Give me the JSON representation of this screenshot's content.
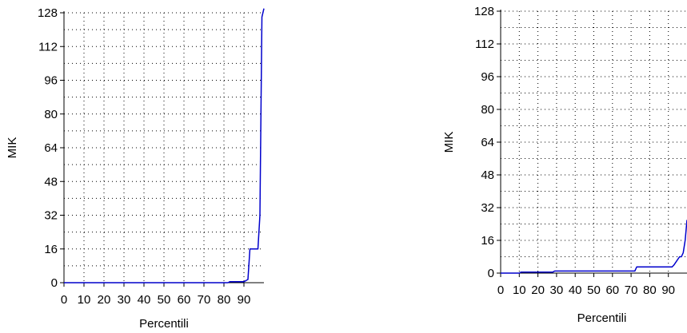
{
  "chart_data": [
    {
      "type": "line",
      "xlabel": "Percentili",
      "ylabel": "MIK",
      "xlim": [
        0,
        100
      ],
      "ylim": [
        0,
        128
      ],
      "x_ticks": [
        0,
        10,
        20,
        30,
        40,
        50,
        60,
        70,
        80,
        90
      ],
      "x_tick_labels": [
        "0",
        "10",
        "20",
        "30",
        "40",
        "50",
        "60",
        "70",
        "80",
        "90"
      ],
      "y_ticks": [
        0,
        16,
        32,
        48,
        64,
        80,
        96,
        112,
        128
      ],
      "y_tick_labels": [
        "0",
        "16",
        "32",
        "48",
        "64",
        "80",
        "96",
        "112",
        "128"
      ],
      "grid": true,
      "series_color": "#0000cc",
      "series": [
        {
          "x": [
            0,
            82,
            83,
            90,
            91,
            92,
            93,
            94,
            97,
            98,
            99,
            100
          ],
          "y": [
            0,
            0,
            0.5,
            0.5,
            1,
            1.5,
            16,
            16,
            16,
            32,
            126,
            130
          ]
        }
      ]
    },
    {
      "type": "line",
      "xlabel": "Percentili",
      "ylabel": "MIK",
      "xlim": [
        0,
        100
      ],
      "ylim": [
        0,
        128
      ],
      "x_ticks": [
        0,
        10,
        20,
        30,
        40,
        50,
        60,
        70,
        80,
        90
      ],
      "x_tick_labels": [
        "0",
        "10",
        "20",
        "30",
        "40",
        "50",
        "60",
        "70",
        "80",
        "90"
      ],
      "y_ticks": [
        0,
        16,
        32,
        48,
        64,
        80,
        96,
        112,
        128
      ],
      "y_tick_labels": [
        "0",
        "16",
        "32",
        "48",
        "64",
        "80",
        "96",
        "112",
        "128"
      ],
      "grid": true,
      "series_color": "#0000cc",
      "series": [
        {
          "x": [
            0,
            10,
            11,
            28,
            29,
            72,
            73,
            92,
            93,
            96,
            97,
            98,
            99,
            100
          ],
          "y": [
            0,
            0,
            0.5,
            0.5,
            1,
            1,
            3,
            3,
            4,
            8,
            8,
            10,
            16,
            26
          ]
        }
      ]
    }
  ]
}
